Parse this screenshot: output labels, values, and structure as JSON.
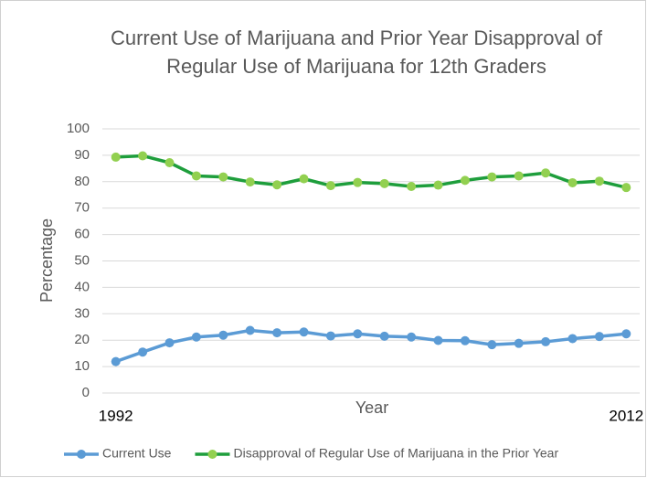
{
  "chart_data": {
    "type": "line",
    "title": "Current Use of Marijuana and Prior Year Disapproval of Regular Use of Marijuana for 12th Graders",
    "xlabel": "Year",
    "ylabel": "Percentage",
    "categories": [
      "1992",
      null,
      null,
      null,
      null,
      null,
      null,
      null,
      null,
      null,
      null,
      null,
      null,
      null,
      null,
      null,
      null,
      null,
      null,
      "2012"
    ],
    "series": [
      {
        "name": "Current Use",
        "color": "#5b9bd5",
        "marker_color": "#5b9bd5",
        "values": [
          11.9,
          15.5,
          19.0,
          21.2,
          21.9,
          23.7,
          22.8,
          23.1,
          21.6,
          22.4,
          21.5,
          21.2,
          19.9,
          19.8,
          18.3,
          18.8,
          19.4,
          20.6,
          21.4,
          22.4
        ]
      },
      {
        "name": "Disapproval of Regular Use of Marijuana in the Prior Year",
        "color": "#1e9e3c",
        "marker_color": "#92d050",
        "values": [
          89.3,
          89.8,
          87.2,
          82.2,
          81.8,
          79.9,
          78.8,
          81.1,
          78.5,
          79.7,
          79.3,
          78.2,
          78.7,
          80.5,
          81.8,
          82.2,
          83.3,
          79.6,
          80.2,
          77.8
        ]
      }
    ],
    "ylim": [
      0,
      100
    ],
    "yticks": [
      0,
      10,
      20,
      30,
      40,
      50,
      60,
      70,
      80,
      90,
      100
    ],
    "grid": true,
    "legend": "bottom"
  }
}
